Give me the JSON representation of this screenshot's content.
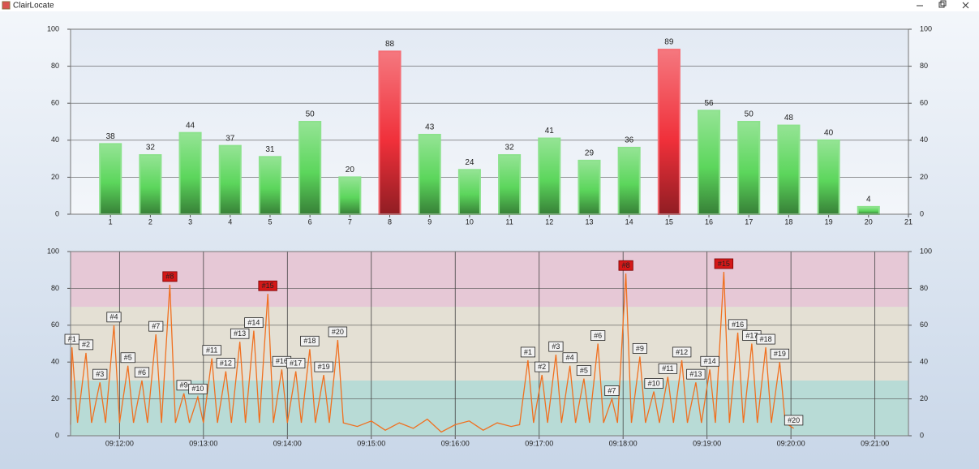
{
  "window": {
    "title": "ClairLocate"
  },
  "chart_data": [
    {
      "type": "bar",
      "x": [
        1,
        2,
        3,
        4,
        5,
        6,
        7,
        8,
        9,
        10,
        11,
        12,
        13,
        14,
        15,
        16,
        17,
        18,
        19,
        20
      ],
      "values": [
        38,
        32,
        44,
        37,
        31,
        50,
        20,
        88,
        43,
        24,
        32,
        41,
        29,
        36,
        89,
        56,
        50,
        48,
        40,
        4
      ],
      "colors": [
        "#5cd65c",
        "#5cd65c",
        "#5cd65c",
        "#5cd65c",
        "#5cd65c",
        "#5cd65c",
        "#5cd65c",
        "#f0303a",
        "#5cd65c",
        "#5cd65c",
        "#5cd65c",
        "#5cd65c",
        "#5cd65c",
        "#5cd65c",
        "#f0303a",
        "#5cd65c",
        "#5cd65c",
        "#5cd65c",
        "#5cd65c",
        "#5cd65c"
      ],
      "xlim": [
        0,
        21
      ],
      "xticks": [
        1,
        2,
        3,
        4,
        5,
        6,
        7,
        8,
        9,
        10,
        11,
        12,
        13,
        14,
        15,
        16,
        17,
        18,
        19,
        20,
        21
      ],
      "ylim": [
        0,
        100
      ],
      "yticks": [
        0,
        20,
        40,
        60,
        80,
        100
      ],
      "y2lim": [
        0,
        100
      ],
      "y2ticks": [
        0,
        20,
        40,
        60,
        80,
        100
      ],
      "grid": true
    },
    {
      "type": "line",
      "x": [
        "09:11:25",
        "09:11:26",
        "09:11:30",
        "09:11:36",
        "09:11:40",
        "09:11:46",
        "09:11:50",
        "09:11:56",
        "09:12:00",
        "09:12:06",
        "09:12:10",
        "09:12:16",
        "09:12:20",
        "09:12:26",
        "09:12:30",
        "09:12:36",
        "09:12:40",
        "09:12:46",
        "09:12:50",
        "09:12:56",
        "09:13:00",
        "09:13:06",
        "09:13:10",
        "09:13:16",
        "09:13:20",
        "09:13:26",
        "09:13:30",
        "09:13:36",
        "09:13:40",
        "09:13:46",
        "09:13:50",
        "09:13:56",
        "09:14:00",
        "09:14:06",
        "09:14:10",
        "09:14:16",
        "09:14:20",
        "09:14:26",
        "09:14:30",
        "09:14:36",
        "09:14:40",
        "09:14:50",
        "09:15:00",
        "09:15:10",
        "09:15:20",
        "09:15:30",
        "09:15:40",
        "09:15:50",
        "09:16:00",
        "09:16:10",
        "09:16:20",
        "09:16:30",
        "09:16:40",
        "09:16:46",
        "09:16:52",
        "09:16:56",
        "09:17:02",
        "09:17:06",
        "09:17:12",
        "09:17:16",
        "09:17:22",
        "09:17:26",
        "09:17:32",
        "09:17:36",
        "09:17:42",
        "09:17:46",
        "09:17:52",
        "09:17:56",
        "09:18:02",
        "09:18:06",
        "09:18:12",
        "09:18:16",
        "09:18:22",
        "09:18:26",
        "09:18:32",
        "09:18:36",
        "09:18:42",
        "09:18:46",
        "09:18:52",
        "09:18:56",
        "09:19:02",
        "09:19:06",
        "09:19:12",
        "09:19:16",
        "09:19:22",
        "09:19:26",
        "09:19:32",
        "09:19:36",
        "09:19:42",
        "09:19:46",
        "09:19:52",
        "09:19:56",
        "09:20:02"
      ],
      "values": [
        6,
        48,
        7,
        45,
        7,
        29,
        7,
        60,
        7,
        38,
        7,
        30,
        7,
        55,
        7,
        82,
        7,
        23,
        7,
        21,
        7,
        42,
        7,
        35,
        7,
        51,
        7,
        57,
        7,
        77,
        7,
        36,
        7,
        35,
        7,
        47,
        7,
        33,
        7,
        52,
        7,
        5,
        8,
        3,
        7,
        4,
        9,
        2,
        6,
        8,
        3,
        7,
        5,
        6,
        41,
        7,
        33,
        7,
        44,
        7,
        38,
        7,
        31,
        7,
        50,
        7,
        20,
        7,
        88,
        7,
        43,
        7,
        24,
        7,
        32,
        7,
        41,
        7,
        29,
        7,
        36,
        7,
        89,
        7,
        56,
        7,
        50,
        7,
        48,
        7,
        40,
        7,
        4
      ],
      "point_labels": [
        null,
        "#1",
        null,
        "#2",
        null,
        "#3",
        null,
        "#4",
        null,
        "#5",
        null,
        "#6",
        null,
        "#7",
        null,
        "#8",
        null,
        "#9",
        null,
        "#10",
        null,
        "#11",
        null,
        "#12",
        null,
        "#13",
        null,
        "#14",
        null,
        "#15",
        null,
        "#16",
        null,
        "#17",
        null,
        "#18",
        null,
        "#19",
        null,
        "#20",
        null,
        null,
        null,
        null,
        null,
        null,
        null,
        null,
        null,
        null,
        null,
        null,
        null,
        null,
        "#1",
        null,
        "#2",
        null,
        "#3",
        null,
        "#4",
        null,
        "#5",
        null,
        "#6",
        null,
        "#7",
        null,
        "#8",
        null,
        "#9",
        null,
        "#10",
        null,
        "#11",
        null,
        "#12",
        null,
        "#13",
        null,
        "#14",
        null,
        "#15",
        null,
        "#16",
        null,
        "#17",
        null,
        "#18",
        null,
        "#19",
        null,
        "#20"
      ],
      "color": "#f07020",
      "label_highlight_color": "#d41818",
      "bands": [
        {
          "from": 0,
          "to": 30,
          "color": "#b8dbd6"
        },
        {
          "from": 30,
          "to": 70,
          "color": "#e4e0d4"
        },
        {
          "from": 70,
          "to": 100,
          "color": "#e6c8d6"
        }
      ],
      "xlim": [
        "09:11:25",
        "09:21:24"
      ],
      "xticks": [
        "09:12:00",
        "09:13:00",
        "09:14:00",
        "09:15:00",
        "09:16:00",
        "09:17:00",
        "09:18:00",
        "09:19:00",
        "09:20:00",
        "09:21:00"
      ],
      "ylim": [
        0,
        100
      ],
      "yticks": [
        0,
        20,
        40,
        60,
        80,
        100
      ],
      "y2lim": [
        0,
        100
      ],
      "y2ticks": [
        0,
        20,
        40,
        60,
        80,
        100
      ],
      "grid": true
    }
  ]
}
